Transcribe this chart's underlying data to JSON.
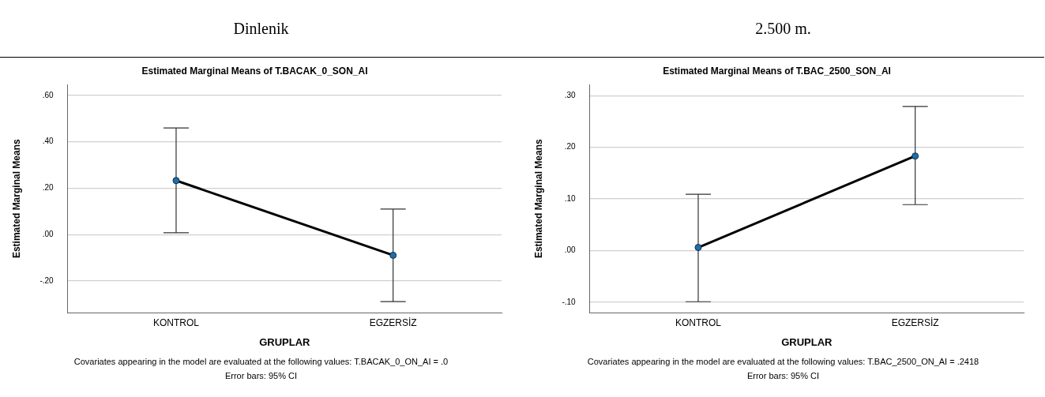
{
  "chart_data": [
    {
      "type": "line",
      "subtitle": "Dinlenik",
      "title": "Estimated Marginal Means of T.BACAK_0_SON_AI",
      "xlabel": "GRUPLAR",
      "ylabel": "Estimated Marginal Means",
      "categories": [
        "KONTROL",
        "EGZERSİZ"
      ],
      "series": [
        {
          "color": "#000000",
          "values": [
            0.233,
            -0.089
          ],
          "errors": [
            [
              0.008,
              0.46
            ],
            [
              -0.289,
              0.11
            ]
          ]
        }
      ],
      "ylim": [
        -0.336,
        0.646
      ],
      "yticks": [
        {
          "value": -0.2,
          "label": "-.20"
        },
        {
          "value": 0,
          "label": ".00"
        },
        {
          "value": 0.2,
          "label": ".20"
        },
        {
          "value": 0.4,
          "label": ".40"
        },
        {
          "value": 0.6,
          "label": ".60"
        }
      ],
      "grid": "y",
      "legend": false,
      "marker": "circle",
      "line_style": "solid",
      "annotations": [
        "Covariates appearing in the model are evaluated at the following values: T.BACAK_0_ON_AI = .0",
        "Error bars: 95% CI"
      ]
    },
    {
      "type": "line",
      "subtitle": "2.500 m.",
      "title": "Estimated Marginal Means of T.BAC_2500_SON_AI",
      "xlabel": "GRUPLAR",
      "ylabel": "Estimated Marginal Means",
      "categories": [
        "KONTROL",
        "EGZERSİZ"
      ],
      "series": [
        {
          "color": "#000000",
          "values": [
            0.006,
            0.183
          ],
          "errors": [
            [
              -0.099,
              0.109
            ],
            [
              0.089,
              0.279
            ]
          ]
        }
      ],
      "ylim": [
        -0.12,
        0.321
      ],
      "yticks": [
        {
          "value": -0.1,
          "label": "-.10"
        },
        {
          "value": 0,
          "label": ".00"
        },
        {
          "value": 0.1,
          "label": ".10"
        },
        {
          "value": 0.2,
          "label": ".20"
        },
        {
          "value": 0.3,
          "label": ".30"
        }
      ],
      "grid": "y",
      "legend": false,
      "marker": "circle",
      "line_style": "solid",
      "annotations": [
        "Covariates appearing in the model are evaluated at the following values: T.BAC_2500_ON_AI = .2418",
        "Error bars: 95% CI"
      ]
    }
  ]
}
